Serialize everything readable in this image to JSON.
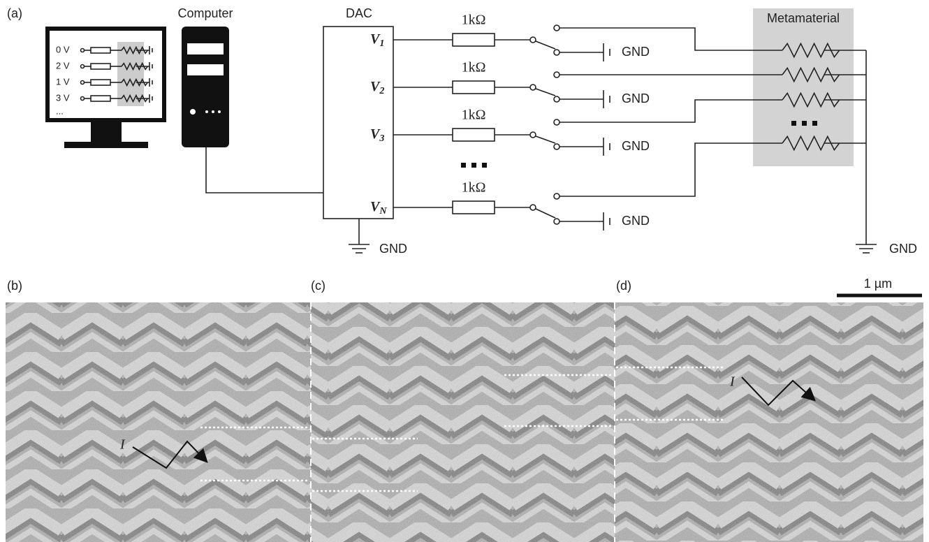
{
  "panel_a": {
    "label": "(a)",
    "computer": "Computer",
    "screen_rows": [
      "0 V",
      "2 V",
      "1 V",
      "3 V"
    ],
    "screen_more": "...",
    "dac": "DAC",
    "dac_ground": "GND",
    "channels": [
      {
        "v": "V",
        "sub": "1",
        "resistor": "1kΩ",
        "ground": "GND"
      },
      {
        "v": "V",
        "sub": "2",
        "resistor": "1kΩ",
        "ground": "GND"
      },
      {
        "v": "V",
        "sub": "3",
        "resistor": "1kΩ",
        "ground": "GND"
      },
      {
        "v": "V",
        "sub": "N",
        "resistor": "1kΩ",
        "ground": "GND"
      }
    ],
    "metamaterial": "Metamaterial",
    "metamaterial_ground": "GND"
  },
  "panel_b": {
    "label": "(b)",
    "current": "I"
  },
  "panel_c": {
    "label": "(c)"
  },
  "panel_d": {
    "label": "(d)",
    "current": "I"
  },
  "scale_bar": "1 µm"
}
